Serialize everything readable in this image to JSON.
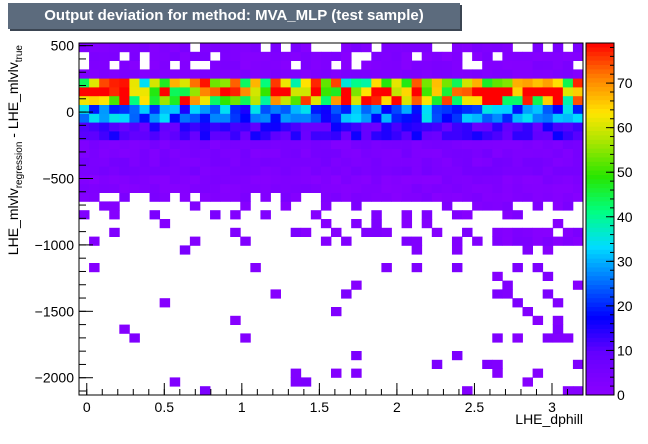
{
  "title": "Output deviation for method: MVA_MLP (test sample)",
  "chart_data": {
    "type": "heatmap",
    "title": "Output deviation for method: MVA_MLP (test sample)",
    "xlabel": "LHE_dphill",
    "ylabel": {
      "main": "LHE_mlvlv",
      "sub1": "regression",
      "mid": " - LHE_mlvlv",
      "sub2": "true"
    },
    "xlim": [
      -0.05,
      3.2
    ],
    "ylim": [
      -2130,
      520
    ],
    "zlim": [
      0,
      79
    ],
    "x_ticks": [
      0,
      0.5,
      1,
      1.5,
      2,
      2.5,
      3
    ],
    "x_tick_labels": [
      "0",
      "0.5",
      "1",
      "1.5",
      "2",
      "2.5",
      "3"
    ],
    "y_ticks": [
      500,
      0,
      -500,
      -1000,
      -1500,
      -2000
    ],
    "y_tick_labels": [
      "500",
      "0",
      "−500",
      "−1000",
      "−1500",
      "−2000"
    ],
    "z_ticks": [
      10,
      20,
      30,
      40,
      50,
      60,
      70
    ],
    "z_tick_labels": [
      "10",
      "20",
      "30",
      "40",
      "50",
      "60",
      "70"
    ],
    "x_bins": {
      "n": 50,
      "min": -0.05,
      "max": 3.2
    },
    "y_bins": {
      "n": 40,
      "min": -2130,
      "max": 520
    },
    "colormap": "kBird",
    "colors": {
      "title_box": "#5c6b7d",
      "palette_low": "#8b00ff",
      "palette_high": "#ff0000"
    }
  }
}
